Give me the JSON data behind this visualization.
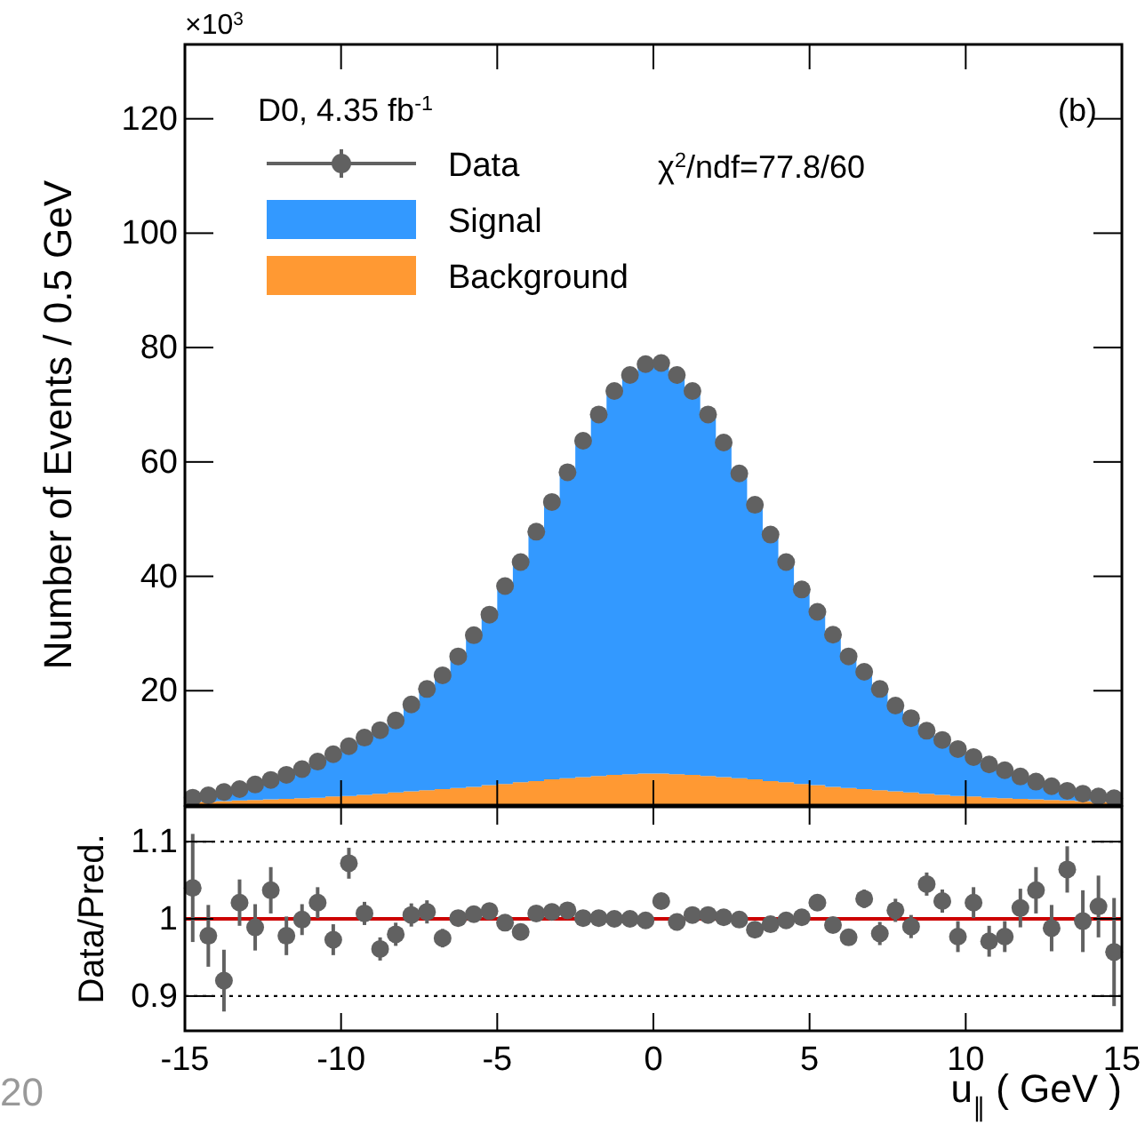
{
  "chart_data": [
    {
      "type": "area",
      "stacked": true,
      "ylabel": "Number of Events / 0.5 GeV",
      "annotations": [
        "×10$^{3}$",
        "D0, 4.35 fb$^{-1}$",
        "χ$^{2}$/ndf=77.8/60",
        "(b)"
      ],
      "x": [
        -14.75,
        -14.25,
        -13.75,
        -13.25,
        -12.75,
        -12.25,
        -11.75,
        -11.25,
        -10.75,
        -10.25,
        -9.75,
        -9.25,
        -8.75,
        -8.25,
        -7.75,
        -7.25,
        -6.75,
        -6.25,
        -5.75,
        -5.25,
        -4.75,
        -4.25,
        -3.75,
        -3.25,
        -2.75,
        -2.25,
        -1.75,
        -1.25,
        -0.75,
        -0.25,
        0.25,
        0.75,
        1.25,
        1.75,
        2.25,
        2.75,
        3.25,
        3.75,
        4.25,
        4.75,
        5.25,
        5.75,
        6.25,
        6.75,
        7.25,
        7.75,
        8.25,
        8.75,
        9.25,
        9.75,
        10.25,
        10.75,
        11.25,
        11.75,
        12.25,
        12.75,
        13.25,
        13.75,
        14.25,
        14.75
      ],
      "series": [
        {
          "name": "Background",
          "color": "#ff9933",
          "values": [
            0.5,
            0.6,
            0.7,
            0.8,
            0.9,
            1.0,
            1.1,
            1.2,
            1.3,
            1.5,
            1.6,
            1.8,
            2.0,
            2.2,
            2.4,
            2.6,
            2.8,
            3.0,
            3.2,
            3.5,
            3.7,
            4.0,
            4.2,
            4.5,
            4.7,
            4.9,
            5.1,
            5.3,
            5.4,
            5.5,
            5.5,
            5.4,
            5.3,
            5.1,
            4.9,
            4.7,
            4.5,
            4.2,
            4.0,
            3.7,
            3.5,
            3.2,
            3.0,
            2.8,
            2.6,
            2.4,
            2.2,
            2.0,
            1.8,
            1.6,
            1.5,
            1.3,
            1.2,
            1.1,
            1.0,
            0.9,
            0.8,
            0.7,
            0.6,
            0.5
          ]
        },
        {
          "name": "Signal",
          "color": "#3399ff",
          "values": [
            0.8,
            1.1,
            1.6,
            2.0,
            2.7,
            3.4,
            4.2,
            5.1,
            6.3,
            7.4,
            8.7,
            10.0,
            11.1,
            12.6,
            15.2,
            17.7,
            19.9,
            23.0,
            26.5,
            29.8,
            34.6,
            38.5,
            43.6,
            48.5,
            53.5,
            58.8,
            63.2,
            67.1,
            69.8,
            71.6,
            71.8,
            69.8,
            67.1,
            63.2,
            58.5,
            53.3,
            48.0,
            43.1,
            38.5,
            34.0,
            30.3,
            26.6,
            23.0,
            20.5,
            17.7,
            15.0,
            13.0,
            11.0,
            9.6,
            8.2,
            6.9,
            5.8,
            4.9,
            3.9,
            3.1,
            2.4,
            1.7,
            1.3,
            0.9,
            0.7
          ]
        },
        {
          "name": "Data",
          "type": "scatter",
          "color": "#616161",
          "marker": "circle",
          "values": [
            1.3,
            1.7,
            2.3,
            2.8,
            3.6,
            4.4,
            5.3,
            6.3,
            7.6,
            8.9,
            10.3,
            11.8,
            13.1,
            14.8,
            17.6,
            20.3,
            22.7,
            26.0,
            29.7,
            33.3,
            38.3,
            42.5,
            47.8,
            53.0,
            58.2,
            63.7,
            68.3,
            72.4,
            75.2,
            77.1,
            77.3,
            75.2,
            72.4,
            68.3,
            63.4,
            58.0,
            52.5,
            47.3,
            42.5,
            37.7,
            33.8,
            29.8,
            26.0,
            23.3,
            20.3,
            17.4,
            15.2,
            13.0,
            11.4,
            9.8,
            8.4,
            7.1,
            6.1,
            5.0,
            4.1,
            3.3,
            2.5,
            2.0,
            1.5,
            1.2
          ]
        }
      ],
      "xlim": [
        -15,
        15
      ],
      "xticks": [
        -15,
        -10,
        -5,
        0,
        5,
        10,
        15
      ],
      "ylim": [
        0,
        133
      ],
      "yticks": [
        20,
        40,
        60,
        80,
        100,
        120
      ],
      "tick_labels": "y",
      "legend": "top left"
    },
    {
      "type": "scatter",
      "ylabel": "Data/Pred.",
      "xlabel": "u$_{∥}$ ( GeV )",
      "annotations": [
        "20"
      ],
      "marker": "circle",
      "color": "#616161",
      "x": [
        -14.75,
        -14.25,
        -13.75,
        -13.25,
        -12.75,
        -12.25,
        -11.75,
        -11.25,
        -10.75,
        -10.25,
        -9.75,
        -9.25,
        -8.75,
        -8.25,
        -7.75,
        -7.25,
        -6.75,
        -6.25,
        -5.75,
        -5.25,
        -4.75,
        -4.25,
        -3.75,
        -3.25,
        -2.75,
        -2.25,
        -1.75,
        -1.25,
        -0.75,
        -0.25,
        0.25,
        0.75,
        1.25,
        1.75,
        2.25,
        2.75,
        3.25,
        3.75,
        4.25,
        4.75,
        5.25,
        5.75,
        6.25,
        6.75,
        7.25,
        7.75,
        8.25,
        8.75,
        9.25,
        9.75,
        10.25,
        10.75,
        11.25,
        11.75,
        12.25,
        12.75,
        13.25,
        13.75,
        14.25,
        14.75
      ],
      "values": [
        1.04,
        0.978,
        0.92,
        1.021,
        0.989,
        1.037,
        0.978,
        0.999,
        1.021,
        0.973,
        1.072,
        1.007,
        0.961,
        0.98,
        1.005,
        1.009,
        0.975,
        1.001,
        1.006,
        1.01,
        0.995,
        0.983,
        1.007,
        1.009,
        1.011,
        1.001,
        1.001,
        1.0,
        1.0,
        0.998,
        1.023,
        0.996,
        1.005,
        1.005,
        1.002,
        0.999,
        0.986,
        0.993,
        0.998,
        1.002,
        1.021,
        0.992,
        0.976,
        1.026,
        0.981,
        1.011,
        0.99,
        1.045,
        1.023,
        0.977,
        1.021,
        0.971,
        0.977,
        1.014,
        1.037,
        0.988,
        1.064,
        0.997,
        1.016,
        0.957
      ],
      "errors": [
        0.07,
        0.04,
        0.04,
        0.03,
        0.03,
        0.03,
        0.025,
        0.02,
        0.02,
        0.02,
        0.02,
        0.015,
        0.015,
        0.015,
        0.015,
        0.015,
        0.012,
        0.01,
        0.01,
        0.008,
        0.006,
        0.006,
        0.005,
        0.005,
        0.005,
        0.005,
        0.005,
        0.005,
        0.005,
        0.005,
        0.005,
        0.005,
        0.005,
        0.005,
        0.005,
        0.005,
        0.005,
        0.005,
        0.006,
        0.006,
        0.008,
        0.01,
        0.01,
        0.012,
        0.015,
        0.015,
        0.015,
        0.015,
        0.015,
        0.02,
        0.02,
        0.02,
        0.02,
        0.025,
        0.03,
        0.03,
        0.03,
        0.04,
        0.04,
        0.07
      ],
      "ref_lines": [
        {
          "axis": "y",
          "value": 1.1,
          "color": "#000000",
          "line_style": "dotted"
        },
        {
          "axis": "y",
          "value": 0.9,
          "color": "#000000",
          "line_style": "dotted"
        },
        {
          "axis": "y",
          "value": 1,
          "color": "#cc0000",
          "line_style": "solid"
        }
      ],
      "xlim": [
        -15,
        15
      ],
      "xticks": [
        -15,
        -10,
        -5,
        0,
        5,
        10,
        15
      ],
      "ylim": [
        0.855,
        1.145
      ],
      "yticks": [
        0.9,
        1,
        1.1
      ]
    }
  ]
}
